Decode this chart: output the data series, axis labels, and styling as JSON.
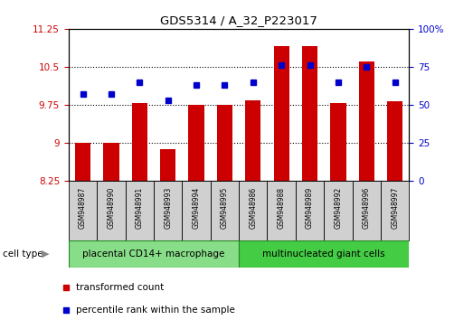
{
  "title": "GDS5314 / A_32_P223017",
  "samples": [
    "GSM948987",
    "GSM948990",
    "GSM948991",
    "GSM948993",
    "GSM948994",
    "GSM948995",
    "GSM948986",
    "GSM948988",
    "GSM948989",
    "GSM948992",
    "GSM948996",
    "GSM948997"
  ],
  "transformed_count": [
    9.0,
    9.0,
    9.79,
    8.87,
    9.75,
    9.75,
    9.83,
    10.9,
    10.9,
    9.79,
    10.6,
    9.82
  ],
  "percentile_rank": [
    57,
    57,
    65,
    53,
    63,
    63,
    65,
    76,
    76,
    65,
    75,
    65
  ],
  "ylim_left": [
    8.25,
    11.25
  ],
  "ylim_right": [
    0,
    100
  ],
  "yticks_left": [
    8.25,
    9.0,
    9.75,
    10.5,
    11.25
  ],
  "ytick_labels_left": [
    "8.25",
    "9",
    "9.75",
    "10.5",
    "11.25"
  ],
  "yticks_right": [
    0,
    25,
    50,
    75,
    100
  ],
  "ytick_labels_right": [
    "0",
    "25",
    "50",
    "75",
    "100%"
  ],
  "hlines": [
    9.0,
    9.75,
    10.5
  ],
  "bar_color": "#cc0000",
  "dot_color": "#0000cc",
  "bar_bottom": 8.25,
  "group1_label": "placental CD14+ macrophage",
  "group2_label": "multinucleated giant cells",
  "group1_count": 6,
  "group2_count": 6,
  "group1_color": "#88dd88",
  "group2_color": "#44cc44",
  "cell_type_label": "cell type",
  "legend1": "transformed count",
  "legend2": "percentile rank within the sample",
  "tick_label_color_left": "#cc0000",
  "tick_label_color_right": "#0000cc",
  "label_bg_color": "#d0d0d0",
  "title_fontsize": 9.5
}
